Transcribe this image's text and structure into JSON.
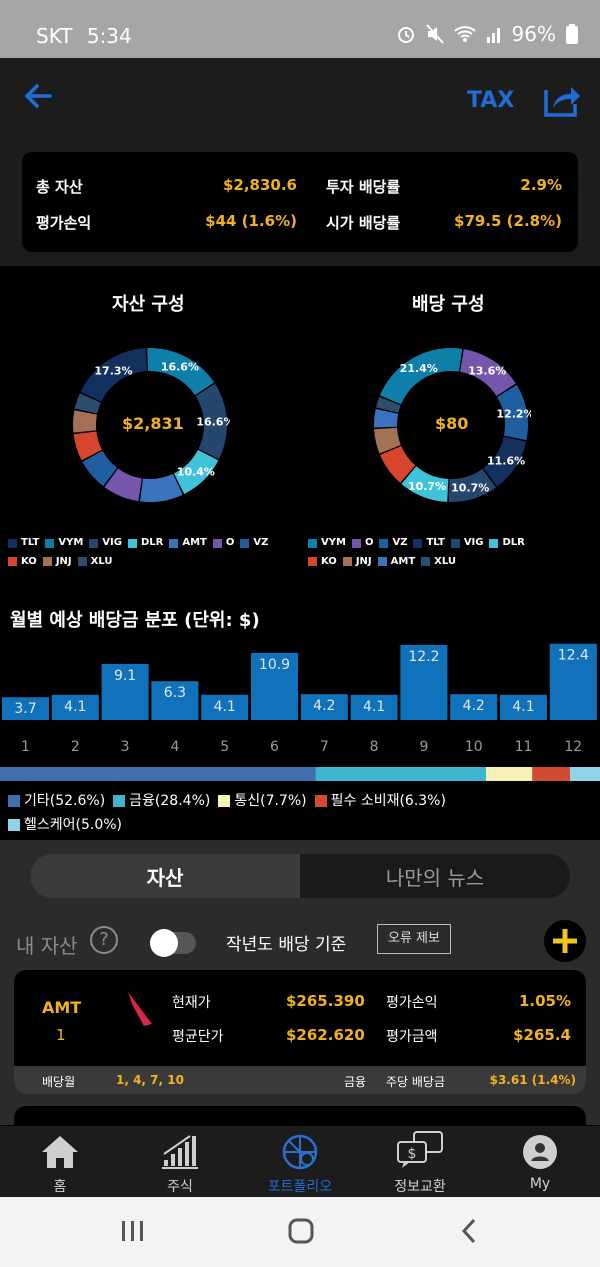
{
  "status_bar": {
    "carrier": "SKT",
    "time": "5:34",
    "battery": "96%"
  },
  "header": {
    "tax_label": "TAX"
  },
  "summary": {
    "total_assets_label": "총 자산",
    "total_assets_value": "$2,830.6",
    "invest_yield_label": "투자 배당률",
    "invest_yield_value": "2.9%",
    "pnl_label": "평가손익",
    "pnl_value": "$44 (1.6%)",
    "market_yield_label": "시가 배당률",
    "market_yield_value": "$79.5 (2.8%)"
  },
  "chart_data": [
    {
      "type": "pie",
      "title": "자산 구성",
      "center_label": "$2,831",
      "slices": [
        {
          "name": "TLT",
          "value": 17.3,
          "label": "17.3%",
          "color": "#14305e"
        },
        {
          "name": "VYM",
          "value": 16.6,
          "label": "16.6%",
          "color": "#0d7fa8"
        },
        {
          "name": "VIG",
          "value": 16.6,
          "label": "16.6%",
          "color": "#25466f"
        },
        {
          "name": "DLR",
          "value": 10.4,
          "label": "10.4%",
          "color": "#40c3d8"
        },
        {
          "name": "AMT",
          "value": 9.4,
          "label": "",
          "color": "#3b73c0"
        },
        {
          "name": "O",
          "value": 8.0,
          "label": "",
          "color": "#7556ad"
        },
        {
          "name": "VZ",
          "value": 7.0,
          "label": "",
          "color": "#1f5fa0"
        },
        {
          "name": "KO",
          "value": 6.0,
          "label": "",
          "color": "#d6452d"
        },
        {
          "name": "JNJ",
          "value": 5.0,
          "label": "",
          "color": "#a27158"
        },
        {
          "name": "XLU",
          "value": 3.7,
          "label": "",
          "color": "#2d4d6e"
        }
      ],
      "legend": [
        "TLT",
        "VYM",
        "VIG",
        "DLR",
        "AMT",
        "O",
        "VZ",
        "KO",
        "JNJ",
        "XLU"
      ]
    },
    {
      "type": "pie",
      "title": "배당 구성",
      "center_label": "$80",
      "slices": [
        {
          "name": "VYM",
          "value": 21.4,
          "label": "21.4%",
          "color": "#0d7fa8"
        },
        {
          "name": "O",
          "value": 13.6,
          "label": "13.6%",
          "color": "#7556ad"
        },
        {
          "name": "VZ",
          "value": 12.2,
          "label": "12.2%",
          "color": "#1f5fa0"
        },
        {
          "name": "TLT",
          "value": 11.6,
          "label": "11.6%",
          "color": "#14305e"
        },
        {
          "name": "VIG",
          "value": 10.7,
          "label": "10.7%",
          "color": "#25466f"
        },
        {
          "name": "DLR",
          "value": 10.7,
          "label": "10.7%",
          "color": "#40c3d8"
        },
        {
          "name": "KO",
          "value": 7.5,
          "label": "",
          "color": "#d6452d"
        },
        {
          "name": "JNJ",
          "value": 5.5,
          "label": "",
          "color": "#a27158"
        },
        {
          "name": "AMT",
          "value": 4.2,
          "label": "",
          "color": "#3b73c0"
        },
        {
          "name": "XLU",
          "value": 2.6,
          "label": "",
          "color": "#2d4d6e"
        }
      ],
      "legend": [
        "VYM",
        "O",
        "VZ",
        "TLT",
        "VIG",
        "DLR",
        "KO",
        "JNJ",
        "AMT",
        "XLU"
      ]
    },
    {
      "type": "bar",
      "title": "월별 예상 배당금 분포 (단위: $)",
      "categories": [
        "1",
        "2",
        "3",
        "4",
        "5",
        "6",
        "7",
        "8",
        "9",
        "10",
        "11",
        "12"
      ],
      "values": [
        3.7,
        4.1,
        9.1,
        6.3,
        4.1,
        10.9,
        4.2,
        4.1,
        12.2,
        4.2,
        4.1,
        12.4
      ],
      "ylim": [
        0,
        13
      ],
      "color": "#1072ba"
    },
    {
      "type": "bar",
      "title": "",
      "stacked": true,
      "series": [
        {
          "name": "기타(52.6%)",
          "value": 52.6,
          "color": "#3f70ad"
        },
        {
          "name": "금융(28.4%)",
          "value": 28.4,
          "color": "#41b4cf"
        },
        {
          "name": "통신(7.7%)",
          "value": 7.7,
          "color": "#f6f2b7"
        },
        {
          "name": "필수 소비재(6.3%)",
          "value": 6.3,
          "color": "#d14a31"
        },
        {
          "name": "헬스케어(5.0%)",
          "value": 5.0,
          "color": "#8ed4e6"
        }
      ]
    }
  ],
  "tabs": {
    "assets": "자산",
    "news": "나만의 뉴스"
  },
  "controls": {
    "my_assets": "내 자산",
    "help": "?",
    "basis": "작년도 배당 기준",
    "report": "오류 제보"
  },
  "holding": {
    "ticker": "AMT",
    "qty": "1",
    "current_price_label": "현재가",
    "current_price": "$265.390",
    "pnl_label": "평가손익",
    "pnl": "1.05%",
    "avg_price_label": "평균단가",
    "avg_price": "$262.620",
    "eval_label": "평가금액",
    "eval": "$265.4",
    "div_month_label": "배당월",
    "div_months": "1, 4, 7, 10",
    "sector": "금융",
    "dps_label": "주당 배당금",
    "dps": "$3.61 (1.4%)"
  },
  "bottom_nav": [
    "홈",
    "주식",
    "포트폴리오",
    "정보교환",
    "My"
  ]
}
